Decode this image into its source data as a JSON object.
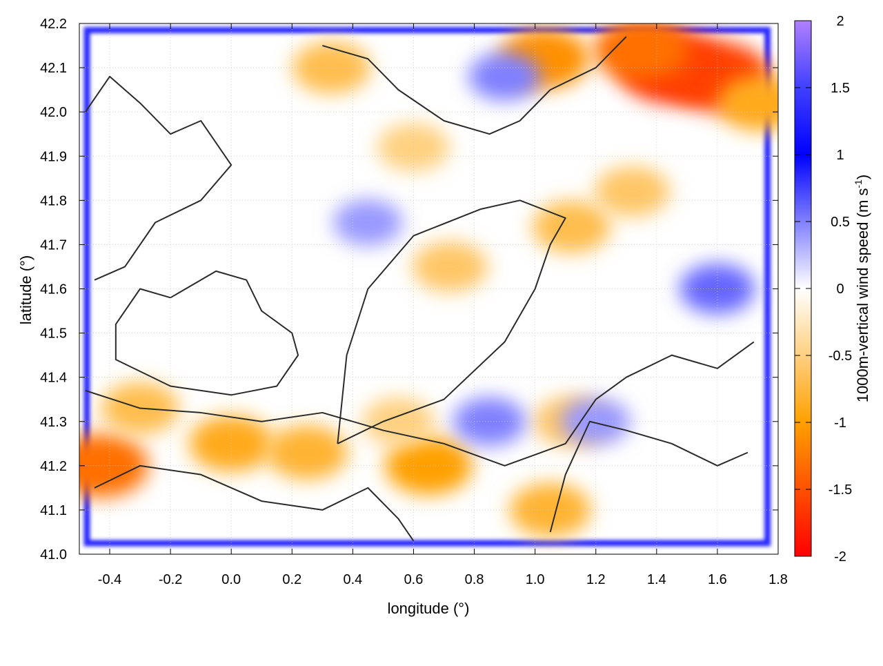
{
  "chart_data": {
    "type": "heatmap",
    "xlabel": "longitude (°)",
    "ylabel": "latitude (°)",
    "colorbar_label": "1000m-vertical wind speed (m s",
    "colorbar_label_sup": "-1",
    "colorbar_label_end": ")",
    "xlim": [
      -0.5,
      1.8
    ],
    "ylim": [
      41.0,
      42.2
    ],
    "zlim": [
      -2,
      2
    ],
    "xticks": [
      "-0.4",
      "-0.2",
      "0.0",
      "0.2",
      "0.4",
      "0.6",
      "0.8",
      "1.0",
      "1.2",
      "1.4",
      "1.6",
      "1.8"
    ],
    "yticks": [
      "41.0",
      "41.1",
      "41.2",
      "41.3",
      "41.4",
      "41.5",
      "41.6",
      "41.7",
      "41.8",
      "41.9",
      "42.0",
      "42.1",
      "42.2"
    ],
    "cbticks": [
      "2",
      "1.5",
      "1",
      "0.5",
      "0",
      "-0.5",
      "-1",
      "-1.5",
      "-2"
    ],
    "grid": true,
    "palette": [
      {
        "v": 2,
        "c": "#b080ff"
      },
      {
        "v": 1.5,
        "c": "#4040ff"
      },
      {
        "v": 1,
        "c": "#0000ff"
      },
      {
        "v": 0.5,
        "c": "#8080ff"
      },
      {
        "v": 0,
        "c": "#ffffff"
      },
      {
        "v": -0.5,
        "c": "#ffd080"
      },
      {
        "v": -1,
        "c": "#ffa000"
      },
      {
        "v": -1.5,
        "c": "#ff5000"
      },
      {
        "v": -2,
        "c": "#ff0000"
      }
    ],
    "boundary_value": 1.3,
    "anomalies": [
      {
        "lon": 1.45,
        "lat": 42.1,
        "value": -1.7
      },
      {
        "lon": 1.6,
        "lat": 42.08,
        "value": -1.6
      },
      {
        "lon": 1.35,
        "lat": 42.14,
        "value": -1.3
      },
      {
        "lon": 1.74,
        "lat": 42.02,
        "value": -0.9
      },
      {
        "lon": 1.03,
        "lat": 42.12,
        "value": -1.1
      },
      {
        "lon": 0.33,
        "lat": 42.1,
        "value": -0.7
      },
      {
        "lon": -0.43,
        "lat": 41.2,
        "value": -1.3
      },
      {
        "lon": -0.3,
        "lat": 41.33,
        "value": -0.7
      },
      {
        "lon": 0.0,
        "lat": 41.25,
        "value": -0.9
      },
      {
        "lon": 0.25,
        "lat": 41.23,
        "value": -0.8
      },
      {
        "lon": 0.65,
        "lat": 41.2,
        "value": -1.0
      },
      {
        "lon": 0.55,
        "lat": 41.3,
        "value": -0.5
      },
      {
        "lon": 1.05,
        "lat": 41.1,
        "value": -0.8
      },
      {
        "lon": 1.12,
        "lat": 41.3,
        "value": -0.6
      },
      {
        "lon": 0.72,
        "lat": 41.65,
        "value": -0.6
      },
      {
        "lon": 1.12,
        "lat": 41.74,
        "value": -0.7
      },
      {
        "lon": 1.32,
        "lat": 41.82,
        "value": -0.6
      },
      {
        "lon": 0.6,
        "lat": 41.92,
        "value": -0.5
      },
      {
        "lon": 0.9,
        "lat": 42.08,
        "value": 0.5
      },
      {
        "lon": 1.6,
        "lat": 41.6,
        "value": 0.6
      },
      {
        "lon": 0.45,
        "lat": 41.75,
        "value": 0.4
      },
      {
        "lon": 1.2,
        "lat": 41.3,
        "value": 0.4
      },
      {
        "lon": 0.85,
        "lat": 41.3,
        "value": 0.5
      }
    ],
    "contours": [
      [
        [
          -0.2,
          41.58
        ],
        [
          -0.05,
          41.64
        ],
        [
          0.05,
          41.62
        ],
        [
          0.1,
          41.55
        ],
        [
          0.2,
          41.5
        ],
        [
          0.22,
          41.45
        ],
        [
          0.15,
          41.38
        ],
        [
          0.0,
          41.36
        ],
        [
          -0.2,
          41.38
        ],
        [
          -0.38,
          41.44
        ],
        [
          -0.38,
          41.52
        ],
        [
          -0.3,
          41.6
        ],
        [
          -0.2,
          41.58
        ]
      ],
      [
        [
          0.35,
          41.25
        ],
        [
          0.5,
          41.3
        ],
        [
          0.7,
          41.35
        ],
        [
          0.9,
          41.48
        ],
        [
          1.0,
          41.6
        ],
        [
          1.05,
          41.7
        ],
        [
          1.1,
          41.76
        ],
        [
          0.95,
          41.8
        ],
        [
          0.82,
          41.78
        ],
        [
          0.6,
          41.72
        ],
        [
          0.45,
          41.6
        ],
        [
          0.38,
          41.45
        ],
        [
          0.35,
          41.25
        ]
      ],
      [
        [
          -0.48,
          41.37
        ],
        [
          -0.3,
          41.33
        ],
        [
          -0.1,
          41.32
        ],
        [
          0.1,
          41.3
        ],
        [
          0.3,
          41.32
        ],
        [
          0.5,
          41.28
        ],
        [
          0.7,
          41.25
        ],
        [
          0.9,
          41.2
        ],
        [
          1.1,
          41.25
        ],
        [
          1.2,
          41.35
        ],
        [
          1.3,
          41.4
        ],
        [
          1.45,
          41.45
        ],
        [
          1.6,
          41.42
        ],
        [
          1.72,
          41.48
        ]
      ],
      [
        [
          1.05,
          41.05
        ],
        [
          1.1,
          41.18
        ],
        [
          1.18,
          41.3
        ],
        [
          1.3,
          41.28
        ],
        [
          1.45,
          41.25
        ],
        [
          1.6,
          41.2
        ],
        [
          1.7,
          41.23
        ]
      ],
      [
        [
          0.3,
          42.15
        ],
        [
          0.45,
          42.12
        ],
        [
          0.55,
          42.05
        ],
        [
          0.7,
          41.98
        ],
        [
          0.85,
          41.95
        ],
        [
          0.95,
          41.98
        ],
        [
          1.05,
          42.05
        ],
        [
          1.2,
          42.1
        ],
        [
          1.3,
          42.17
        ]
      ],
      [
        [
          -0.48,
          42.0
        ],
        [
          -0.4,
          42.08
        ],
        [
          -0.3,
          42.02
        ],
        [
          -0.2,
          41.95
        ],
        [
          -0.1,
          41.98
        ],
        [
          0.0,
          41.88
        ],
        [
          -0.1,
          41.8
        ],
        [
          -0.25,
          41.75
        ],
        [
          -0.35,
          41.65
        ],
        [
          -0.45,
          41.62
        ]
      ],
      [
        [
          -0.45,
          41.15
        ],
        [
          -0.3,
          41.2
        ],
        [
          -0.1,
          41.18
        ],
        [
          0.1,
          41.12
        ],
        [
          0.3,
          41.1
        ],
        [
          0.45,
          41.15
        ],
        [
          0.55,
          41.08
        ],
        [
          0.6,
          41.03
        ]
      ]
    ]
  }
}
